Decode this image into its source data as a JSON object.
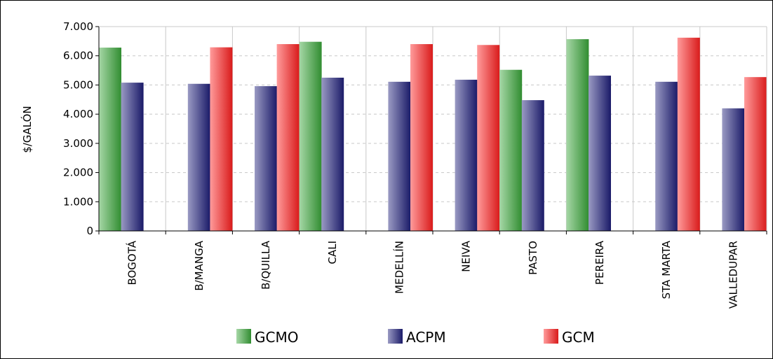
{
  "chart_data": {
    "type": "bar",
    "ylabel": "$/GALÓN",
    "ylim": [
      0,
      7000
    ],
    "yticks": [
      "0",
      "1.000",
      "2.000",
      "3.000",
      "4.000",
      "5.000",
      "6.000",
      "7.000"
    ],
    "grid": true,
    "legend_position": "bottom",
    "categories": [
      "BOGOTÁ",
      "B/MANGA",
      "B/QUILLA",
      "CALI",
      "MEDELLÍN",
      "NEIVA",
      "PASTO",
      "PEREIRA",
      "STA MARTA",
      "VALLEDUPAR"
    ],
    "series": [
      {
        "name": "GCMO",
        "color": "#3aa63a",
        "values": [
          6280,
          null,
          null,
          6480,
          null,
          null,
          5520,
          6570,
          null,
          null
        ]
      },
      {
        "name": "ACPM",
        "color": "#1f1f7a",
        "values": [
          5080,
          5040,
          4960,
          5250,
          5110,
          5180,
          4480,
          5320,
          5110,
          4200
        ]
      },
      {
        "name": "GCM",
        "color": "#ff2020",
        "values": [
          null,
          6290,
          6400,
          null,
          6400,
          6370,
          null,
          null,
          6620,
          5270
        ]
      }
    ]
  }
}
